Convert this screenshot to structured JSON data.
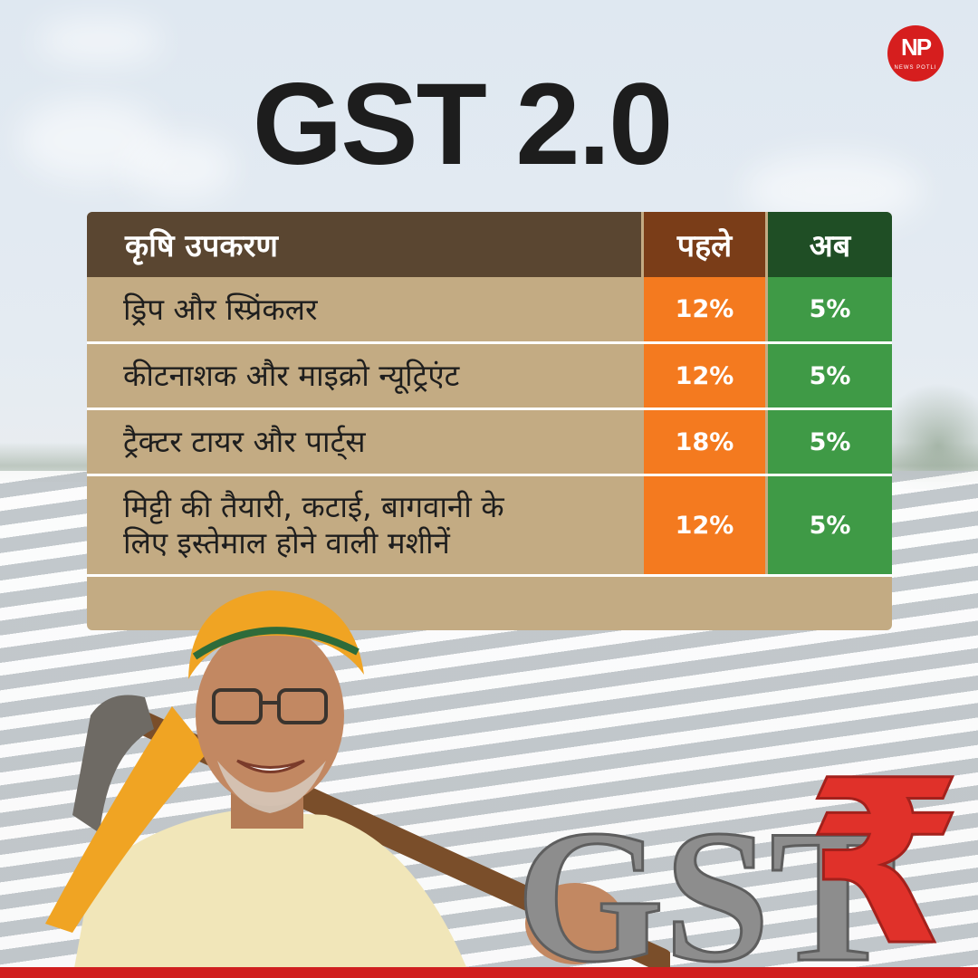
{
  "brand": {
    "logo_text": "NP",
    "logo_sub": "NEWS POTLI"
  },
  "title": "GST 2.0",
  "table": {
    "headers": {
      "item": "कृषि उपकरण",
      "before": "पहले",
      "now": "अब"
    },
    "rows": [
      {
        "item": "ड्रिप और स्प्रिंकलर",
        "before": "12%",
        "now": "5%"
      },
      {
        "item": "कीटनाशक और माइक्रो न्यूट्रिएंट",
        "before": "12%",
        "now": "5%"
      },
      {
        "item": "ट्रैक्टर टायर और पार्ट्स",
        "before": "18%",
        "now": "5%"
      },
      {
        "item_line1": "मिट्टी की तैयारी, कटाई, बागवानी के",
        "item_line2": "लिए इस्तेमाल होने वाली मशीनें",
        "before": "12%",
        "now": "5%"
      }
    ]
  },
  "graphic": {
    "label": "GST",
    "symbol": "₹"
  },
  "colors": {
    "header_bg": "#5a4631",
    "before_header": "#7a3d18",
    "now_header": "#1f4e25",
    "before_cell": "#f47a1f",
    "now_cell": "#3f9a46",
    "row_bg": "#c3ab83",
    "accent_red": "#d01f1f"
  }
}
